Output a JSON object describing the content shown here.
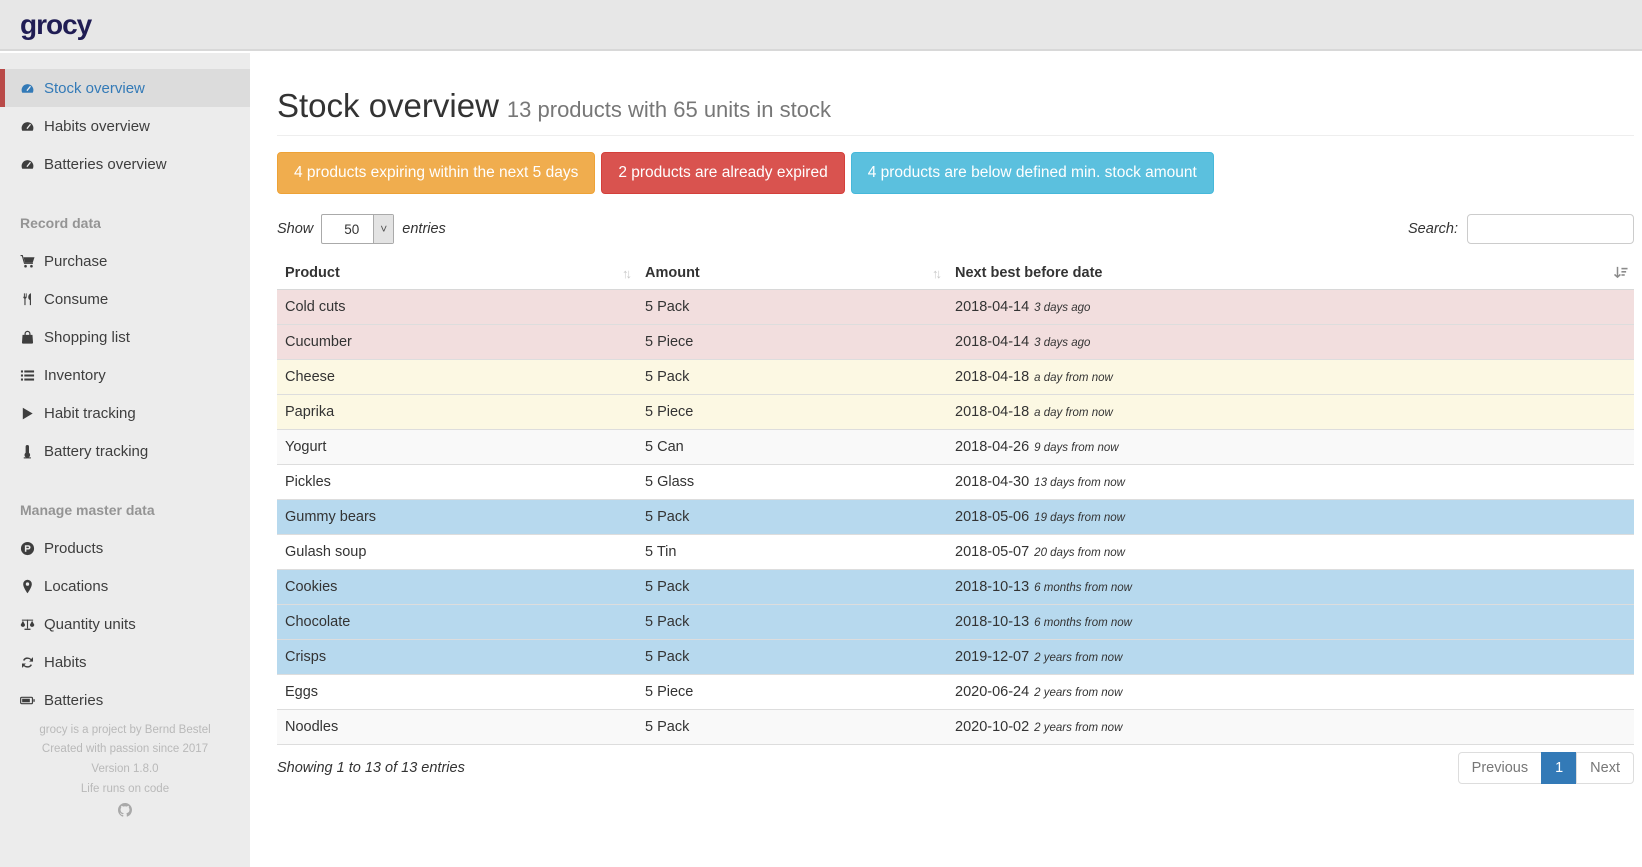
{
  "brand": {
    "logo_text": "grocy"
  },
  "sidebar": {
    "groups": [
      {
        "header": null,
        "items": [
          {
            "label": "Stock overview",
            "icon": "tachometer",
            "active": true
          },
          {
            "label": "Habits overview",
            "icon": "tachometer",
            "active": false
          },
          {
            "label": "Batteries overview",
            "icon": "tachometer",
            "active": false
          }
        ]
      },
      {
        "header": "Record data",
        "items": [
          {
            "label": "Purchase",
            "icon": "shopping-cart",
            "active": false
          },
          {
            "label": "Consume",
            "icon": "utensils",
            "active": false
          },
          {
            "label": "Shopping list",
            "icon": "shopping-bag",
            "active": false
          },
          {
            "label": "Inventory",
            "icon": "list",
            "active": false
          },
          {
            "label": "Habit tracking",
            "icon": "play",
            "active": false
          },
          {
            "label": "Battery tracking",
            "icon": "thermometer",
            "active": false
          }
        ]
      },
      {
        "header": "Manage master data",
        "items": [
          {
            "label": "Products",
            "icon": "product-circle-p",
            "active": false
          },
          {
            "label": "Locations",
            "icon": "map-marker",
            "active": false
          },
          {
            "label": "Quantity units",
            "icon": "balance-scale",
            "active": false
          },
          {
            "label": "Habits",
            "icon": "sync",
            "active": false
          },
          {
            "label": "Batteries",
            "icon": "battery",
            "active": false
          }
        ]
      }
    ],
    "footer_lines": [
      "grocy is a project by Bernd Bestel",
      "Created with passion since 2017",
      "Version 1.8.0",
      "Life runs on code"
    ],
    "footer_icon": "github"
  },
  "header": {
    "title": "Stock overview",
    "subtitle": "13 products with 65 units in stock"
  },
  "alerts": [
    {
      "label": "4 products expiring within the next 5 days",
      "type": "warning",
      "color": "#f0ad4e"
    },
    {
      "label": "2 products are already expired",
      "type": "danger",
      "color": "#d9534f"
    },
    {
      "label": "4 products are below defined min. stock amount",
      "type": "info",
      "color": "#5bc0de"
    }
  ],
  "table_controls": {
    "show_label": "Show",
    "page_length": "50",
    "entries_label": "entries",
    "search_label": "Search:",
    "search_value": ""
  },
  "table": {
    "columns": [
      "Product",
      "Amount",
      "Next best before date"
    ],
    "rows": [
      {
        "product": "Cold cuts",
        "amount": "5 Pack",
        "date": "2018-04-14",
        "relative": "3 days ago",
        "status": "danger"
      },
      {
        "product": "Cucumber",
        "amount": "5 Piece",
        "date": "2018-04-14",
        "relative": "3 days ago",
        "status": "danger"
      },
      {
        "product": "Cheese",
        "amount": "5 Pack",
        "date": "2018-04-18",
        "relative": "a day from now",
        "status": "warning"
      },
      {
        "product": "Paprika",
        "amount": "5 Piece",
        "date": "2018-04-18",
        "relative": "a day from now",
        "status": "warning"
      },
      {
        "product": "Yogurt",
        "amount": "5 Can",
        "date": "2018-04-26",
        "relative": "9 days from now",
        "status": ""
      },
      {
        "product": "Pickles",
        "amount": "5 Glass",
        "date": "2018-04-30",
        "relative": "13 days from now",
        "status": ""
      },
      {
        "product": "Gummy bears",
        "amount": "5 Pack",
        "date": "2018-05-06",
        "relative": "19 days from now",
        "status": "info"
      },
      {
        "product": "Gulash soup",
        "amount": "5 Tin",
        "date": "2018-05-07",
        "relative": "20 days from now",
        "status": ""
      },
      {
        "product": "Cookies",
        "amount": "5 Pack",
        "date": "2018-10-13",
        "relative": "6 months from now",
        "status": "info"
      },
      {
        "product": "Chocolate",
        "amount": "5 Pack",
        "date": "2018-10-13",
        "relative": "6 months from now",
        "status": "info"
      },
      {
        "product": "Crisps",
        "amount": "5 Pack",
        "date": "2019-12-07",
        "relative": "2 years from now",
        "status": "info"
      },
      {
        "product": "Eggs",
        "amount": "5 Piece",
        "date": "2020-06-24",
        "relative": "2 years from now",
        "status": ""
      },
      {
        "product": "Noodles",
        "amount": "5 Pack",
        "date": "2020-10-02",
        "relative": "2 years from now",
        "status": ""
      }
    ],
    "summary": "Showing 1 to 13 of 13 entries"
  },
  "pagination": {
    "previous_label": "Previous",
    "current_page": "1",
    "next_label": "Next"
  },
  "colors": {
    "active_link": "#337ab7",
    "active_marker": "#b94a48",
    "row_expired": "#f2dede",
    "row_expiring": "#fcf8e3",
    "row_below_min_stock": "#b7d9ee",
    "alert_warning": "#f0ad4e",
    "alert_danger": "#d9534f",
    "alert_info": "#5bc0de",
    "logo": "#201d54"
  }
}
